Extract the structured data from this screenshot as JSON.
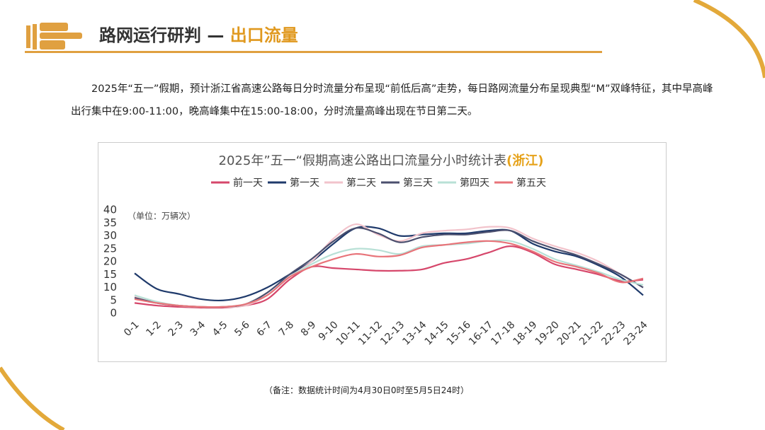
{
  "header": {
    "title": "路网运行研判 —",
    "title_highlight": "出口流量"
  },
  "paragraph": "2025年“五一”假期，预计浙江省高速公路每日分时流量分布呈现“前低后高”走势，每日路网流量分布呈现典型“M”双峰特征，其中早高峰出行集中在9:00-11:00，晚高峰集中在15:00-18:00，分时流量高峰出现在节日第二天。",
  "chart_data": {
    "type": "line",
    "title": "2025年”五一“假期高速公路出口流量分小时统计表",
    "title_highlight": "(浙江)",
    "unit_note": "（单位：万辆次）",
    "categories": [
      "0-1",
      "1-2",
      "2-3",
      "3-4",
      "4-5",
      "5-6",
      "6-7",
      "7-8",
      "8-9",
      "9-10",
      "10-11",
      "11-12",
      "12-13",
      "13-14",
      "14-15",
      "15-16",
      "16-17",
      "17-18",
      "18-19",
      "19-20",
      "20-21",
      "21-22",
      "22-23",
      "23-24"
    ],
    "series": [
      {
        "name": "前一天",
        "color": "#d6476b",
        "values": [
          4,
          3,
          2.5,
          2.2,
          2.2,
          3,
          5.5,
          13,
          18,
          17.5,
          17,
          16.5,
          16.5,
          17,
          19.5,
          21,
          23.5,
          26,
          23.5,
          19,
          17,
          15,
          12.5,
          13
        ]
      },
      {
        "name": "第一天",
        "color": "#1f3a6b",
        "values": [
          15.5,
          9.5,
          7.5,
          5.5,
          5,
          6.5,
          10,
          15,
          20,
          27,
          33,
          33,
          30,
          30.5,
          31,
          31,
          32,
          32,
          27,
          24,
          22,
          18.5,
          14,
          7
        ]
      },
      {
        "name": "第二天",
        "color": "#f2c3cb",
        "values": [
          6.5,
          4,
          3,
          2.5,
          2.5,
          3,
          7,
          14,
          20,
          29,
          34.5,
          30.5,
          28,
          31,
          32,
          32.5,
          33.5,
          33,
          29,
          26,
          23.5,
          20,
          15,
          10
        ]
      },
      {
        "name": "第三天",
        "color": "#4b4f6e",
        "values": [
          6,
          4,
          3,
          2.5,
          2.5,
          3.5,
          8,
          15,
          21,
          28,
          33,
          31,
          27.5,
          29.5,
          30.5,
          30.5,
          31.5,
          32,
          28,
          25,
          22.5,
          19,
          15,
          10
        ]
      },
      {
        "name": "第四天",
        "color": "#b8e0d6",
        "values": [
          7,
          4.5,
          3,
          2.5,
          2.5,
          3.5,
          7,
          14,
          19,
          23,
          25,
          24.5,
          23,
          26,
          26.5,
          27,
          28,
          28,
          25,
          21,
          18.5,
          16,
          13,
          11
        ]
      },
      {
        "name": "第五天",
        "color": "#e87379",
        "values": [
          5.5,
          4,
          3,
          2.5,
          2.5,
          3.5,
          7,
          14,
          18,
          21,
          23,
          22,
          22.5,
          25.5,
          26.5,
          27.5,
          28,
          27,
          24,
          20,
          18,
          15.5,
          12,
          13.5
        ]
      }
    ],
    "ylim": [
      0,
      40
    ],
    "yticks": [
      0,
      5,
      10,
      15,
      20,
      25,
      30,
      35,
      40
    ],
    "grid": false
  },
  "note": "（备注：数据统计时间为4月30日0时至5月5日24时）"
}
